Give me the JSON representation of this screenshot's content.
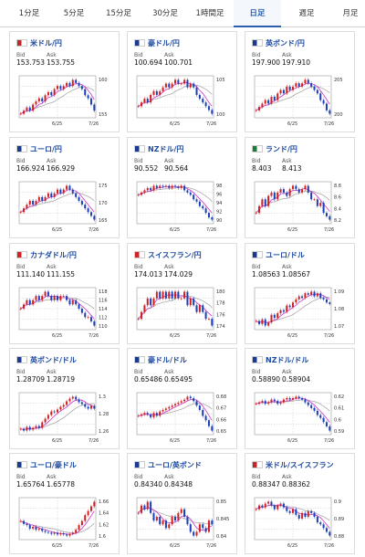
{
  "tabs": [
    "1分足",
    "5分足",
    "15分足",
    "30分足",
    "1時間足",
    "日足",
    "週足",
    "月足"
  ],
  "active_tab": 5,
  "labels": {
    "bid": "Bid",
    "ask": "Ask"
  },
  "colors": {
    "accent": "#2a5fb0",
    "title": "#1e4aa0",
    "up": "#d02020",
    "down": "#1a3fb8",
    "ma1": "#cc33cc",
    "ma2": "#aaaaaa"
  },
  "cards": [
    {
      "pair": "米ドル/円",
      "bid": "153.753",
      "ask": "153.755",
      "flag": "us-jp-flag-icon",
      "x_ticks": [
        "6/25",
        "7/26"
      ],
      "y_ticks": [
        "160",
        "155"
      ],
      "series": [
        151,
        152,
        153,
        152,
        154,
        155,
        156,
        155,
        157,
        158,
        157,
        159,
        160,
        159,
        160,
        161,
        160,
        162,
        161,
        160,
        159,
        157,
        156,
        154,
        152
      ]
    },
    {
      "pair": "豪ドル/円",
      "bid": "100.694",
      "ask": "100.701",
      "flag": "au-jp-flag-icon",
      "x_ticks": [
        "6/25",
        "7/26"
      ],
      "y_ticks": [
        "105",
        "100"
      ],
      "series": [
        102,
        103,
        104,
        103,
        105,
        106,
        105,
        106,
        107,
        108,
        107,
        108,
        109,
        108,
        108,
        109,
        107,
        108,
        107,
        105,
        104,
        103,
        102,
        101,
        100
      ]
    },
    {
      "pair": "英ポンド/円",
      "bid": "197.900",
      "ask": "197.910",
      "flag": "gb-jp-flag-icon",
      "x_ticks": [
        "6/25",
        "7/26"
      ],
      "y_ticks": [
        "205",
        "200"
      ],
      "series": [
        198,
        199,
        200,
        201,
        200,
        202,
        201,
        203,
        204,
        203,
        205,
        204,
        205,
        206,
        205,
        206,
        207,
        206,
        205,
        204,
        203,
        201,
        200,
        198,
        197
      ]
    },
    {
      "pair": "ユーロ/円",
      "bid": "166.924",
      "ask": "166.929",
      "flag": "eu-jp-flag-icon",
      "x_ticks": [
        "6/25",
        "7/26"
      ],
      "y_ticks": [
        "175",
        "170",
        "165"
      ],
      "series": [
        168,
        169,
        170,
        171,
        170,
        171,
        172,
        171,
        172,
        173,
        172,
        173,
        174,
        173,
        174,
        175,
        174,
        173,
        172,
        171,
        170,
        169,
        168,
        167,
        166
      ]
    },
    {
      "pair": "NZドル/円",
      "bid": "90.552",
      "ask": "90.564",
      "flag": "nz-jp-flag-icon",
      "x_ticks": [
        "6/25",
        "7/26"
      ],
      "y_ticks": [
        "98",
        "96",
        "94",
        "92",
        "90"
      ],
      "series": [
        96,
        96.5,
        97,
        97.5,
        97,
        98,
        97.5,
        98,
        97.8,
        98,
        97.5,
        98,
        97.8,
        97.5,
        98,
        97,
        96.5,
        96,
        95,
        94.5,
        93.5,
        93,
        92,
        91,
        90.5
      ]
    },
    {
      "pair": "ランド/円",
      "bid": "8.403",
      "ask": "8.413",
      "flag": "za-jp-flag-icon",
      "x_ticks": [
        "6/25",
        "7/26"
      ],
      "y_ticks": [
        "8.8",
        "8.6",
        "8.4",
        "8.2"
      ],
      "series": [
        8.5,
        8.6,
        8.7,
        8.6,
        8.75,
        8.8,
        8.7,
        8.8,
        8.85,
        8.8,
        8.75,
        8.85,
        8.9,
        8.85,
        8.8,
        8.85,
        8.9,
        8.8,
        8.7,
        8.7,
        8.6,
        8.65,
        8.5,
        8.45,
        8.4
      ]
    },
    {
      "pair": "カナダドル/円",
      "bid": "111.140",
      "ask": "111.155",
      "flag": "ca-jp-flag-icon",
      "x_ticks": [
        "6/25",
        "7/26"
      ],
      "y_ticks": [
        "118",
        "116",
        "114",
        "112",
        "110"
      ],
      "series": [
        114,
        115,
        116,
        115,
        116,
        117,
        116,
        117,
        118,
        117,
        116,
        117,
        116,
        117,
        117,
        116,
        115,
        116,
        115,
        114,
        113,
        112,
        112,
        111,
        110
      ]
    },
    {
      "pair": "スイスフラン/円",
      "bid": "174.013",
      "ask": "174.029",
      "flag": "ch-jp-flag-icon",
      "x_ticks": [
        "6/25",
        "7/26"
      ],
      "y_ticks": [
        "180",
        "178",
        "176",
        "174"
      ],
      "series": [
        175,
        176,
        177,
        178,
        177,
        178,
        179,
        178,
        179,
        178,
        179,
        178,
        179,
        178,
        178,
        179,
        177,
        178,
        177,
        176,
        177,
        176,
        175,
        175,
        174
      ]
    },
    {
      "pair": "ユーロ/ドル",
      "bid": "1.08563",
      "ask": "1.08567",
      "flag": "eu-us-flag-icon",
      "x_ticks": [
        "6/25",
        "7/26"
      ],
      "y_ticks": [
        "1.09",
        "1.08",
        "1.07"
      ],
      "series": [
        1.074,
        1.072,
        1.075,
        1.071,
        1.073,
        1.078,
        1.076,
        1.079,
        1.081,
        1.08,
        1.084,
        1.083,
        1.086,
        1.088,
        1.09,
        1.089,
        1.092,
        1.091,
        1.093,
        1.09,
        1.092,
        1.089,
        1.088,
        1.086,
        1.085
      ]
    },
    {
      "pair": "英ポンド/ドル",
      "bid": "1.28709",
      "ask": "1.28719",
      "flag": "gb-us-flag-icon",
      "x_ticks": [
        "6/25",
        "7/26"
      ],
      "y_ticks": [
        "1.3",
        "1.28",
        "1.26"
      ],
      "series": [
        1.265,
        1.263,
        1.267,
        1.264,
        1.266,
        1.268,
        1.266,
        1.272,
        1.276,
        1.28,
        1.284,
        1.283,
        1.286,
        1.289,
        1.291,
        1.295,
        1.298,
        1.3,
        1.297,
        1.294,
        1.292,
        1.289,
        1.287,
        1.29,
        1.287
      ]
    },
    {
      "pair": "豪ドル/ドル",
      "bid": "0.65486",
      "ask": "0.65495",
      "flag": "au-us-flag-icon",
      "x_ticks": [
        "6/25",
        "7/26"
      ],
      "y_ticks": [
        "0.68",
        "0.67",
        "0.66",
        "0.65"
      ],
      "series": [
        0.665,
        0.666,
        0.667,
        0.666,
        0.664,
        0.667,
        0.665,
        0.668,
        0.669,
        0.67,
        0.671,
        0.672,
        0.673,
        0.674,
        0.675,
        0.676,
        0.678,
        0.677,
        0.675,
        0.672,
        0.669,
        0.665,
        0.662,
        0.658,
        0.655
      ]
    },
    {
      "pair": "NZドル/ドル",
      "bid": "0.58890",
      "ask": "0.58904",
      "flag": "nz-us-flag-icon",
      "x_ticks": [
        "6/25",
        "7/26"
      ],
      "y_ticks": [
        "0.62",
        "0.61",
        "0.6",
        "0.59"
      ],
      "series": [
        0.608,
        0.609,
        0.61,
        0.608,
        0.609,
        0.611,
        0.61,
        0.608,
        0.609,
        0.611,
        0.612,
        0.611,
        0.612,
        0.613,
        0.612,
        0.611,
        0.609,
        0.607,
        0.605,
        0.603,
        0.6,
        0.598,
        0.595,
        0.592,
        0.589
      ]
    },
    {
      "pair": "ユーロ/豪ドル",
      "bid": "1.65764",
      "ask": "1.65778",
      "flag": "eu-au-flag-icon",
      "x_ticks": [
        "6/25",
        "7/26"
      ],
      "y_ticks": [
        "1.66",
        "1.64",
        "1.62",
        "1.6"
      ],
      "series": [
        1.625,
        1.62,
        1.618,
        1.612,
        1.615,
        1.61,
        1.612,
        1.608,
        1.606,
        1.605,
        1.603,
        1.605,
        1.602,
        1.604,
        1.602,
        1.6,
        1.603,
        1.605,
        1.61,
        1.618,
        1.625,
        1.635,
        1.642,
        1.65,
        1.658
      ]
    },
    {
      "pair": "ユーロ/英ポンド",
      "bid": "0.84340",
      "ask": "0.84348",
      "flag": "eu-gb-flag-icon",
      "x_ticks": [
        "6/25",
        "7/26"
      ],
      "y_ticks": [
        "0.85",
        "0.845",
        "0.84"
      ],
      "series": [
        0.846,
        0.848,
        0.847,
        0.849,
        0.846,
        0.844,
        0.845,
        0.843,
        0.844,
        0.842,
        0.843,
        0.845,
        0.844,
        0.846,
        0.847,
        0.845,
        0.843,
        0.841,
        0.84,
        0.841,
        0.843,
        0.842,
        0.841,
        0.844,
        0.843
      ]
    },
    {
      "pair": "米ドル/スイスフラン",
      "bid": "0.88347",
      "ask": "0.88362",
      "flag": "us-ch-flag-icon",
      "x_ticks": [
        "6/25",
        "7/26"
      ],
      "y_ticks": [
        "0.9",
        "0.89",
        "0.88"
      ],
      "series": [
        0.897,
        0.899,
        0.898,
        0.9,
        0.901,
        0.899,
        0.897,
        0.899,
        0.9,
        0.898,
        0.896,
        0.895,
        0.897,
        0.894,
        0.892,
        0.895,
        0.893,
        0.896,
        0.895,
        0.893,
        0.89,
        0.889,
        0.887,
        0.885,
        0.883
      ]
    }
  ]
}
